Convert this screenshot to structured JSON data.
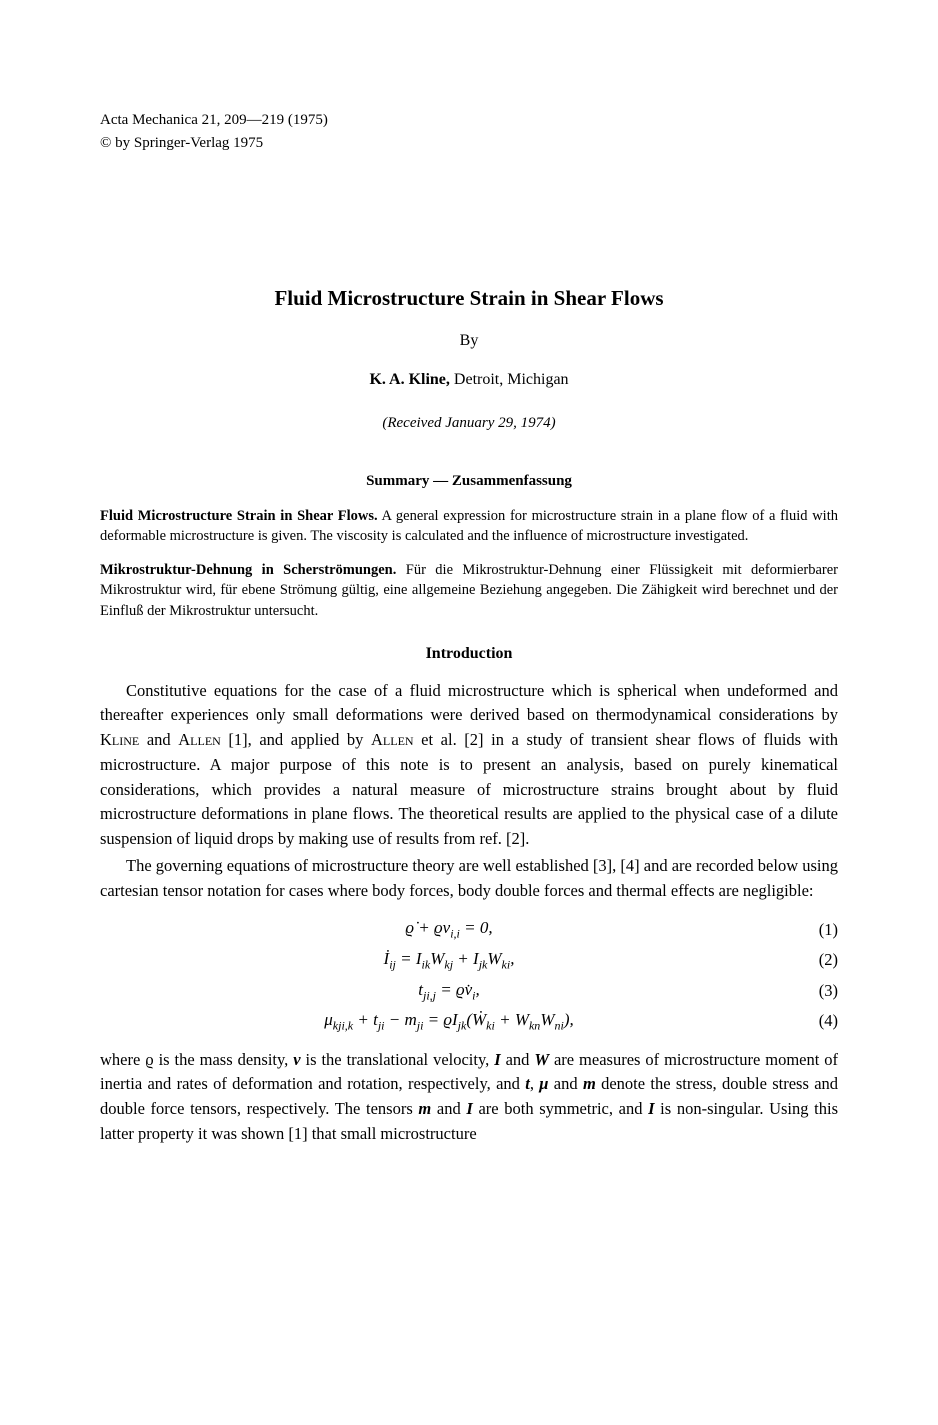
{
  "header": {
    "journal": "Acta Mechanica 21, 209—219 (1975)",
    "copyright": "© by Springer-Verlag 1975"
  },
  "title": "Fluid Microstructure Strain in Shear Flows",
  "by": "By",
  "author": {
    "name": "K. A. Kline,",
    "affiliation": " Detroit, Michigan"
  },
  "received": "(Received January 29, 1974)",
  "summary_header": "Summary — Zusammenfassung",
  "abstract_en": {
    "lead": "Fluid Microstructure Strain in Shear Flows.",
    "text": " A general expression for microstructure strain in a plane flow of a fluid with deformable microstructure is given. The viscosity is calculated and the influence of microstructure investigated."
  },
  "abstract_de": {
    "lead": "Mikrostruktur-Dehnung in Scherströmungen.",
    "text": " Für die Mikrostruktur-Dehnung einer Flüssigkeit mit deformierbarer Mikrostruktur wird, für ebene Strömung gültig, eine allgemeine Beziehung angegeben. Die Zähigkeit wird berechnet und der Einfluß der Mikrostruktur untersucht."
  },
  "section_intro": "Introduction",
  "para1_a": "Constitutive equations for the case of a fluid microstructure which is spherical when undeformed and thereafter experiences only small deformations were derived based on thermodynamical considerations by ",
  "para1_b": " [1], and applied by ",
  "para1_c": " et al. [2] in a study of transient shear flows of fluids with microstructure. A major purpose of this note is to present an analysis, based on purely kinematical considerations, which provides a natural measure of microstructure strains brought about by fluid microstructure deformations in plane flows. The theoretical results are applied to the physical case of a dilute suspension of liquid drops by making use of results from ref. [2].",
  "name_kline_allen": "Kline",
  "name_and": " and ",
  "name_allen": "Allen",
  "para2": "The governing equations of microstructure theory are well established [3], [4] and are recorded below using cartesian tensor notation for cases where body forces, body double forces and thermal effects are negligible:",
  "equations": {
    "eq1": {
      "html": "ϱ̇ + ϱv<span class=\"eq-sub\">i,i</span> = 0,",
      "num": "(1)"
    },
    "eq2": {
      "html": "İ<span class=\"eq-sub\">ij</span> = I<span class=\"eq-sub\">ik</span>W<span class=\"eq-sub\">kj</span> + I<span class=\"eq-sub\">jk</span>W<span class=\"eq-sub\">ki</span>,",
      "num": "(2)"
    },
    "eq3": {
      "html": "t<span class=\"eq-sub\">ji,j</span> = ϱv̇<span class=\"eq-sub\">i</span>,",
      "num": "(3)"
    },
    "eq4": {
      "html": "μ<span class=\"eq-sub\">kji,k</span> + t<span class=\"eq-sub\">ji</span> − m<span class=\"eq-sub\">ji</span> = ϱI<span class=\"eq-sub\">jk</span>(Ẇ<span class=\"eq-sub\">ki</span> + W<span class=\"eq-sub\">kn</span>W<span class=\"eq-sub\">ni</span>),",
      "num": "(4)"
    }
  },
  "para3_a": "where ϱ is the mass density, ",
  "para3_b": " is the translational velocity, ",
  "para3_c": " and ",
  "para3_d": " are measures of microstructure moment of inertia and rates of deformation and rotation, respectively, and ",
  "para3_e": " and ",
  "para3_f": " denote the stress, double stress and double force tensors, respectively. The tensors ",
  "para3_g": " and ",
  "para3_h": " are both symmetric, and ",
  "para3_i": " is non-singular. Using this latter property it was shown [1] that small microstructure",
  "sym_v": "v",
  "sym_I": "I",
  "sym_W": "W",
  "sym_t": "t",
  "sym_mu": "μ",
  "sym_m": "m",
  "para3_comma": ", "
}
